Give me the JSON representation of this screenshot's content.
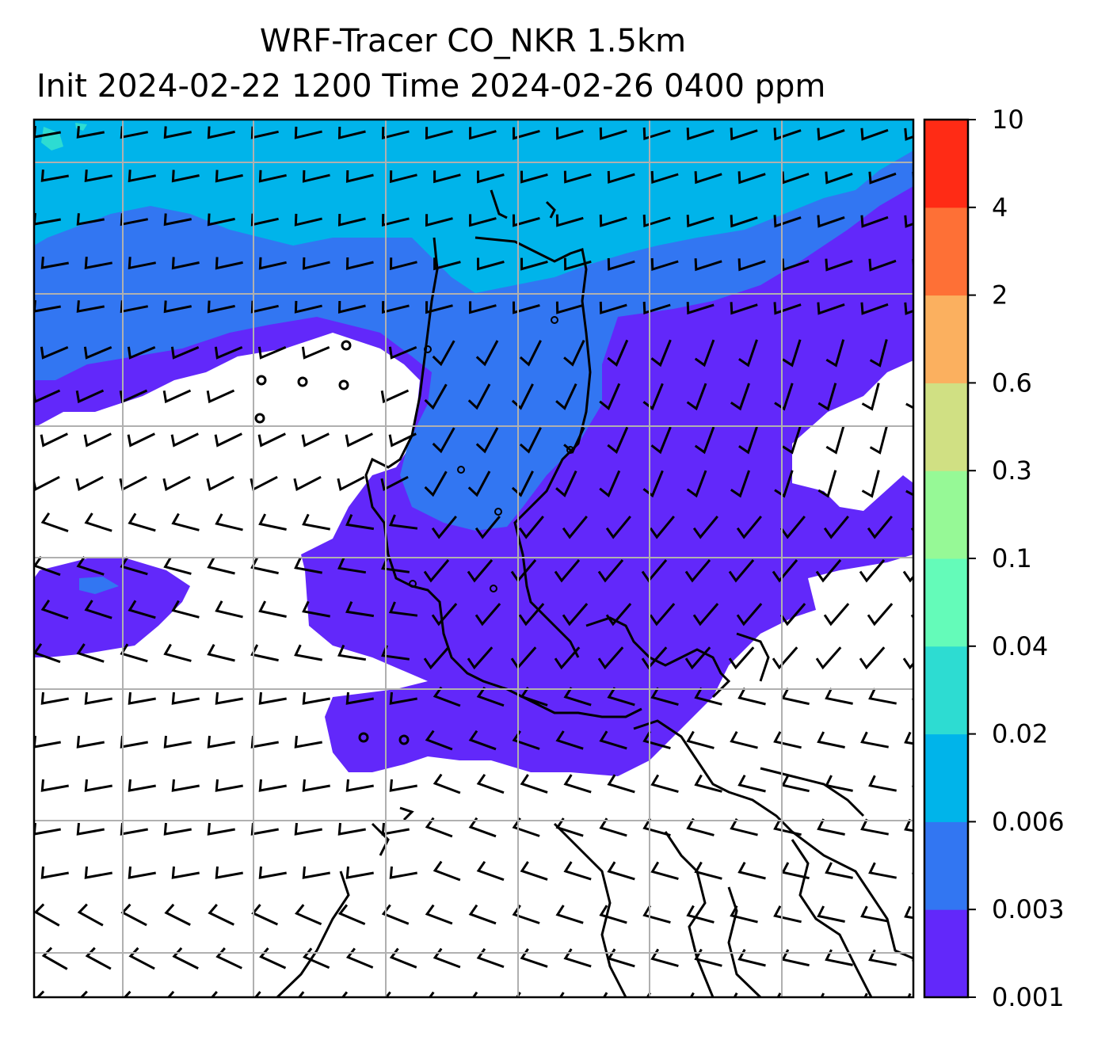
{
  "title": {
    "line1": "WRF-Tracer CO_NKR 1.5km",
    "line2": "Init 2024-02-22 1200 Time 2024-02-26 0400 ppm"
  },
  "colorbar": {
    "levels": [
      "0.001",
      "0.003",
      "0.006",
      "0.02",
      "0.04",
      "0.1",
      "0.3",
      "0.6",
      "2",
      "4",
      "10"
    ],
    "colors": [
      "#6228fa",
      "#3276f2",
      "#00b4ea",
      "#2ddcd2",
      "#64fbb9",
      "#96f996",
      "#d0e083",
      "#fbb05f",
      "#fe7036",
      "#ff2b15"
    ]
  },
  "map": {
    "gridlines": true,
    "coastline_color": "#000000",
    "wind_barbs": true
  }
}
